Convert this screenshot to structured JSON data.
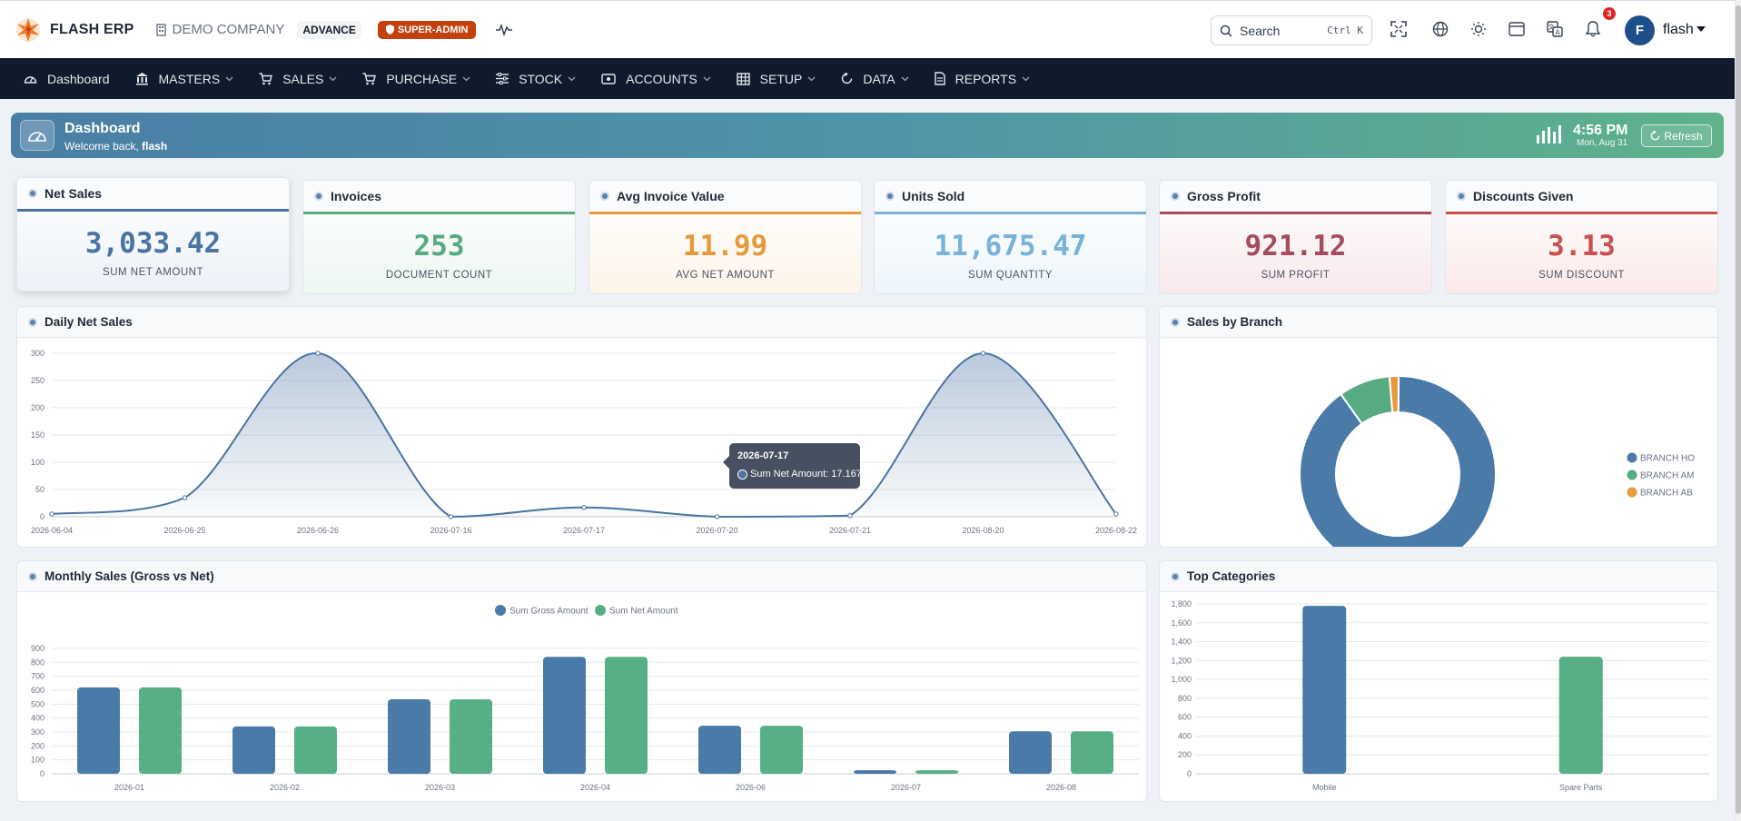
{
  "app": {
    "brand": "FLASH ERP",
    "company": "DEMO COMPANY",
    "edition": "ADVANCE",
    "role": "SUPER-ADMIN"
  },
  "topbar": {
    "search_label": "Search",
    "search_shortcut": "Ctrl K",
    "notification_count": "3",
    "user_initial": "F",
    "user_name": "flash",
    "icons": [
      "fullscreen-icon",
      "globe-icon",
      "sun-icon",
      "window-icon",
      "translate-icon",
      "bell-icon"
    ]
  },
  "nav": {
    "items": [
      {
        "label": "Dashboard",
        "icon": "dashboard-icon",
        "dropdown": false
      },
      {
        "label": "MASTERS",
        "icon": "bank-icon",
        "dropdown": true
      },
      {
        "label": "SALES",
        "icon": "cart-icon",
        "dropdown": true
      },
      {
        "label": "PURCHASE",
        "icon": "cart-icon",
        "dropdown": true
      },
      {
        "label": "STOCK",
        "icon": "sliders-icon",
        "dropdown": true
      },
      {
        "label": "ACCOUNTS",
        "icon": "cash-icon",
        "dropdown": true
      },
      {
        "label": "SETUP",
        "icon": "table-icon",
        "dropdown": true
      },
      {
        "label": "DATA",
        "icon": "refresh-icon",
        "dropdown": true
      },
      {
        "label": "REPORTS",
        "icon": "document-icon",
        "dropdown": true
      }
    ]
  },
  "banner": {
    "title": "Dashboard",
    "welcome": "Welcome back,",
    "user": "flash",
    "time": "4:56 PM",
    "date": "Mon, Aug 31",
    "refresh_label": "Refresh"
  },
  "stats": [
    {
      "title": "Net Sales",
      "value": "3,033.42",
      "label": "SUM NET AMOUNT",
      "color": "#4a74a3"
    },
    {
      "title": "Invoices",
      "value": "253",
      "label": "DOCUMENT COUNT",
      "color": "#57ab81"
    },
    {
      "title": "Avg Invoice Value",
      "value": "11.99",
      "label": "AVG NET AMOUNT",
      "color": "#e59a3b"
    },
    {
      "title": "Units Sold",
      "value": "11,675.47",
      "label": "SUM QUANTITY",
      "color": "#77b3da"
    },
    {
      "title": "Gross Profit",
      "value": "921.12",
      "label": "SUM PROFIT",
      "color": "#a54d5c"
    },
    {
      "title": "Discounts Given",
      "value": "3.13",
      "label": "SUM DISCOUNT",
      "color": "#c8514e"
    }
  ],
  "panels": {
    "daily": "Daily Net Sales",
    "branch": "Sales by Branch",
    "monthly": "Monthly Sales (Gross vs Net)",
    "categories": "Top Categories"
  },
  "tooltip": {
    "date": "2026-07-17",
    "text": "Sum Net Amount: 17.167"
  },
  "chart_data": [
    {
      "type": "area",
      "title": "Daily Net Sales",
      "categories": [
        "2026-06-04",
        "2026-06-25",
        "2026-06-26",
        "2026-07-16",
        "2026-07-17",
        "2026-07-20",
        "2026-07-21",
        "2026-08-20",
        "2026-08-22"
      ],
      "series": [
        {
          "name": "Sum Net Amount",
          "values": [
            5,
            35,
            300,
            0,
            17.167,
            0,
            2,
            300,
            5
          ]
        }
      ],
      "yticks": [
        0,
        50,
        100,
        150,
        200,
        250,
        300
      ],
      "ylim": [
        0,
        300
      ],
      "grid": true,
      "color": "#4a74a3"
    },
    {
      "type": "pie",
      "title": "Sales by Branch",
      "labels": [
        "BRANCH HO",
        "BRANCH AM",
        "BRANCH AB"
      ],
      "values": [
        90,
        8.5,
        1.5
      ],
      "colors": [
        "#4a7aa7",
        "#57ab81",
        "#e89a3c"
      ],
      "legend": "right"
    },
    {
      "type": "bar",
      "title": "Monthly Sales (Gross vs Net)",
      "categories": [
        "2026-01",
        "2026-02",
        "2026-03",
        "2026-04",
        "2026-06",
        "2026-07",
        "2026-08"
      ],
      "series": [
        {
          "name": "Sum Gross Amount",
          "values": [
            620,
            340,
            535,
            840,
            345,
            25,
            305
          ],
          "color": "#4a7aa7"
        },
        {
          "name": "Sum Net Amount",
          "values": [
            620,
            340,
            535,
            840,
            345,
            25,
            305
          ],
          "color": "#57b085"
        }
      ],
      "yticks": [
        0,
        100,
        200,
        300,
        400,
        500,
        600,
        700,
        800,
        900
      ],
      "ylim": [
        0,
        900
      ],
      "legend": "top"
    },
    {
      "type": "bar",
      "title": "Top Categories",
      "categories": [
        "Mobile",
        "Spare Parts"
      ],
      "values": [
        1780,
        1240
      ],
      "colors": [
        "#4a7aa7",
        "#57b085"
      ],
      "yticks": [
        "0",
        "200",
        "400",
        "600",
        "800",
        "1,000",
        "1,200",
        "1,400",
        "1,600",
        "1,800"
      ],
      "ylim": [
        0,
        1800
      ]
    }
  ]
}
